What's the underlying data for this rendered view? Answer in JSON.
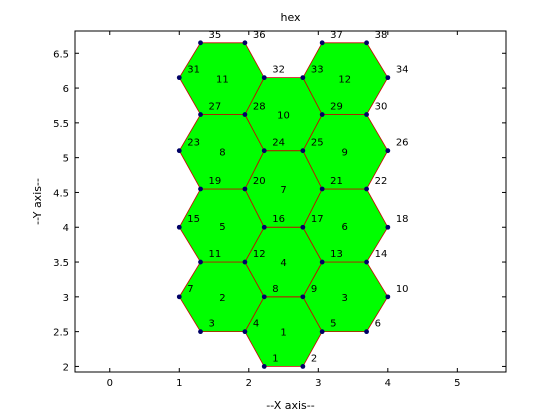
{
  "chart_data": {
    "type": "scatter",
    "title": "hex",
    "xlabel": "--X axis--",
    "ylabel": "--Y axis--",
    "xlim": [
      -0.5,
      5.7
    ],
    "ylim": [
      1.92,
      6.82
    ],
    "xticks": [
      "0",
      "1",
      "2",
      "3",
      "4",
      "5"
    ],
    "yticks": [
      "2",
      "2.5",
      "3",
      "3.5",
      "4",
      "4.5",
      "5",
      "5.5",
      "6",
      "6.5"
    ],
    "colors": {
      "face": "#00ff00",
      "edge": "#cc0000",
      "node": "#000066"
    },
    "nodes": [
      {
        "id": "1",
        "x": 2.2222,
        "y": 2.0
      },
      {
        "id": "2",
        "x": 2.7778,
        "y": 2.0
      },
      {
        "id": "3",
        "x": 1.3056,
        "y": 2.5
      },
      {
        "id": "4",
        "x": 1.9444,
        "y": 2.5
      },
      {
        "id": "5",
        "x": 3.0556,
        "y": 2.5
      },
      {
        "id": "6",
        "x": 3.6944,
        "y": 2.5
      },
      {
        "id": "7",
        "x": 1.0,
        "y": 3.0
      },
      {
        "id": "8",
        "x": 2.2222,
        "y": 3.0
      },
      {
        "id": "9",
        "x": 2.7778,
        "y": 3.0
      },
      {
        "id": "10",
        "x": 4.0,
        "y": 3.0
      },
      {
        "id": "11",
        "x": 1.3056,
        "y": 3.5
      },
      {
        "id": "12",
        "x": 1.9444,
        "y": 3.5
      },
      {
        "id": "13",
        "x": 3.0556,
        "y": 3.5
      },
      {
        "id": "14",
        "x": 3.6944,
        "y": 3.5
      },
      {
        "id": "15",
        "x": 1.0,
        "y": 4.0
      },
      {
        "id": "16",
        "x": 2.2222,
        "y": 4.0
      },
      {
        "id": "17",
        "x": 2.7778,
        "y": 4.0
      },
      {
        "id": "18",
        "x": 4.0,
        "y": 4.0
      },
      {
        "id": "19",
        "x": 1.3056,
        "y": 4.55
      },
      {
        "id": "20",
        "x": 1.9444,
        "y": 4.55
      },
      {
        "id": "21",
        "x": 3.0556,
        "y": 4.55
      },
      {
        "id": "22",
        "x": 3.6944,
        "y": 4.55
      },
      {
        "id": "23",
        "x": 1.0,
        "y": 5.1
      },
      {
        "id": "24",
        "x": 2.2222,
        "y": 5.1
      },
      {
        "id": "25",
        "x": 2.7778,
        "y": 5.1
      },
      {
        "id": "26",
        "x": 4.0,
        "y": 5.1
      },
      {
        "id": "27",
        "x": 1.3056,
        "y": 5.62
      },
      {
        "id": "28",
        "x": 1.9444,
        "y": 5.62
      },
      {
        "id": "29",
        "x": 3.0556,
        "y": 5.62
      },
      {
        "id": "30",
        "x": 3.6944,
        "y": 5.62
      },
      {
        "id": "31",
        "x": 1.0,
        "y": 6.15
      },
      {
        "id": "32",
        "x": 2.2222,
        "y": 6.15
      },
      {
        "id": "33",
        "x": 2.7778,
        "y": 6.15
      },
      {
        "id": "34",
        "x": 4.0,
        "y": 6.15
      },
      {
        "id": "35",
        "x": 1.3056,
        "y": 6.65
      },
      {
        "id": "36",
        "x": 1.9444,
        "y": 6.65
      },
      {
        "id": "37",
        "x": 3.0556,
        "y": 6.65
      },
      {
        "id": "38",
        "x": 3.6944,
        "y": 6.65
      }
    ],
    "cells": [
      {
        "id": "1",
        "nodes": [
          "1",
          "2",
          "5",
          "9",
          "8",
          "4"
        ]
      },
      {
        "id": "2",
        "nodes": [
          "3",
          "4",
          "8",
          "12",
          "11",
          "7"
        ]
      },
      {
        "id": "3",
        "nodes": [
          "5",
          "6",
          "10",
          "14",
          "13",
          "9"
        ]
      },
      {
        "id": "4",
        "nodes": [
          "8",
          "9",
          "13",
          "17",
          "16",
          "12"
        ]
      },
      {
        "id": "5",
        "nodes": [
          "11",
          "12",
          "16",
          "20",
          "19",
          "15"
        ]
      },
      {
        "id": "6",
        "nodes": [
          "13",
          "14",
          "18",
          "22",
          "21",
          "17"
        ]
      },
      {
        "id": "7",
        "nodes": [
          "16",
          "17",
          "21",
          "25",
          "24",
          "20"
        ]
      },
      {
        "id": "8",
        "nodes": [
          "19",
          "20",
          "24",
          "28",
          "27",
          "23"
        ]
      },
      {
        "id": "9",
        "nodes": [
          "21",
          "22",
          "26",
          "30",
          "29",
          "25"
        ]
      },
      {
        "id": "10",
        "nodes": [
          "24",
          "25",
          "29",
          "33",
          "32",
          "28"
        ]
      },
      {
        "id": "11",
        "nodes": [
          "27",
          "28",
          "32",
          "36",
          "35",
          "31"
        ]
      },
      {
        "id": "12",
        "nodes": [
          "29",
          "30",
          "34",
          "38",
          "37",
          "33"
        ]
      }
    ]
  }
}
